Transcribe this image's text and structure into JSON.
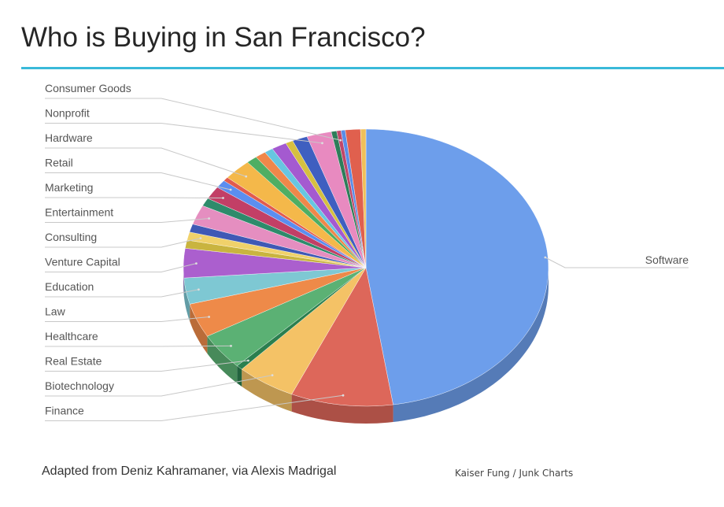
{
  "title": "Who is Buying in San Francisco?",
  "footer": {
    "source": "Adapted from Deniz Kahramaner, via Alexis Madrigal",
    "credit": "Kaiser Fung / Junk Charts"
  },
  "colors": {
    "accent_rule": "#39b9d9"
  },
  "chart_data": {
    "type": "pie",
    "title": "Who is Buying in San Francisco?",
    "style": "3d-tilted",
    "legend": "leader-line labels on left and right",
    "slices": [
      {
        "label": "Software",
        "value": 50.0,
        "color": "#6d9eeb"
      },
      {
        "label": "Finance",
        "value": 9.5,
        "color": "#dd675a"
      },
      {
        "label": "Biotechnology",
        "value": 5.5,
        "color": "#f4c266"
      },
      {
        "label": "Real Estate",
        "value": 0.6,
        "color": "#2b7f4f"
      },
      {
        "label": "Healthcare",
        "value": 4.5,
        "color": "#5bb174"
      },
      {
        "label": "Law",
        "value": 4.2,
        "color": "#ee8a49"
      },
      {
        "label": "Education",
        "value": 3.2,
        "color": "#7ec8d3"
      },
      {
        "label": "Venture Capital",
        "value": 3.6,
        "color": "#ab5fce"
      },
      {
        "label": "",
        "value": 1.0,
        "color": "#c9b43f"
      },
      {
        "label": "Consulting",
        "value": 1.0,
        "color": "#f0d16a"
      },
      {
        "label": "",
        "value": 1.0,
        "color": "#3f59b5"
      },
      {
        "label": "Entertainment",
        "value": 2.4,
        "color": "#e58ec0"
      },
      {
        "label": "",
        "value": 1.0,
        "color": "#2e8b6b"
      },
      {
        "label": "Marketing",
        "value": 1.6,
        "color": "#c23f66"
      },
      {
        "label": "Retail",
        "value": 1.0,
        "color": "#5b8ef0"
      },
      {
        "label": "",
        "value": 0.5,
        "color": "#e25b4e"
      },
      {
        "label": "Hardware",
        "value": 2.6,
        "color": "#f4b84a"
      },
      {
        "label": "",
        "value": 1.0,
        "color": "#4fae63"
      },
      {
        "label": "",
        "value": 1.0,
        "color": "#f0874a"
      },
      {
        "label": "",
        "value": 0.8,
        "color": "#67c6e0"
      },
      {
        "label": "",
        "value": 1.4,
        "color": "#a45ad0"
      },
      {
        "label": "",
        "value": 0.7,
        "color": "#d6c040"
      },
      {
        "label": "",
        "value": 1.4,
        "color": "#3f5fc0"
      },
      {
        "label": "Nonprofit",
        "value": 2.3,
        "color": "#e88ac0"
      },
      {
        "label": "",
        "value": 0.5,
        "color": "#2e7d5a"
      },
      {
        "label": "Consumer Goods",
        "value": 0.4,
        "color": "#c0476a"
      },
      {
        "label": "",
        "value": 0.4,
        "color": "#5a8de8"
      },
      {
        "label": "",
        "value": 1.4,
        "color": "#e0604e"
      },
      {
        "label": "",
        "value": 0.5,
        "color": "#f0c05a"
      }
    ]
  }
}
